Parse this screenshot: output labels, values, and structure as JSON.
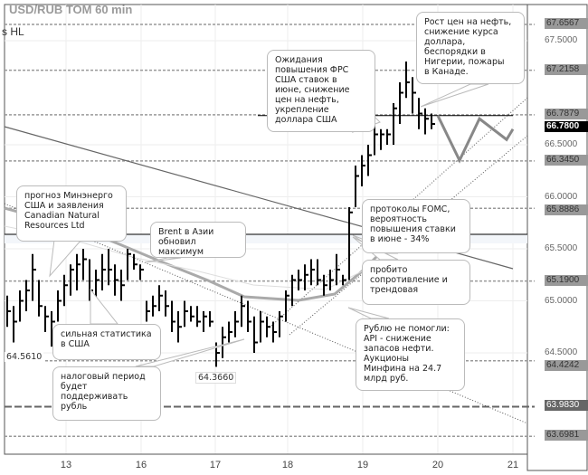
{
  "header": {
    "title": "USD/RUB TOM 60 min",
    "subtitle": "s HL"
  },
  "chart_data": {
    "type": "ohlc-bar",
    "title": "USD/RUB TOM 60 min",
    "x_tick_labels": [
      "13",
      "16",
      "17",
      "18",
      "19",
      "20",
      "21"
    ],
    "y_tick_labels": [
      "67.5000",
      "66.5000",
      "66.0000",
      "65.5000",
      "65.0000",
      "64.5000"
    ],
    "y_ticks": [
      67.5,
      66.5,
      66.0,
      65.5,
      65.0,
      64.5
    ],
    "ylim": [
      63.58,
      67.85
    ],
    "level_lines": [
      {
        "label": "67.6567",
        "value": 67.6567,
        "style": "level"
      },
      {
        "label": "67.2158",
        "value": 67.2158,
        "style": "level"
      },
      {
        "label": "66.7879",
        "value": 66.7879,
        "style": "level"
      },
      {
        "label": "66.7800",
        "value": 66.78,
        "style": "current"
      },
      {
        "label": "66.3450",
        "value": 66.345,
        "style": "level"
      },
      {
        "label": "65.8886",
        "value": 65.8886,
        "style": "level"
      },
      {
        "label": "65.1900",
        "value": 65.19,
        "style": "level"
      },
      {
        "label": "64.4242",
        "value": 64.4242,
        "style": "level"
      },
      {
        "label": "63.9830",
        "value": 63.983,
        "style": "dark"
      },
      {
        "label": "63.6981",
        "value": 63.6981,
        "style": "level"
      }
    ],
    "bars_hlc": [
      [
        65.05,
        64.75,
        64.9
      ],
      [
        64.95,
        64.6,
        64.8
      ],
      [
        65.1,
        64.8,
        65.0
      ],
      [
        65.2,
        64.9,
        65.1
      ],
      [
        65.45,
        65.0,
        65.3
      ],
      [
        65.2,
        64.85,
        64.95
      ],
      [
        64.95,
        64.7,
        64.85
      ],
      [
        64.9,
        64.56,
        64.8
      ],
      [
        65.1,
        64.8,
        65.0
      ],
      [
        65.25,
        64.95,
        65.15
      ],
      [
        65.35,
        65.05,
        65.3
      ],
      [
        65.45,
        65.1,
        65.35
      ],
      [
        65.5,
        65.2,
        65.4
      ],
      [
        65.4,
        65.0,
        65.1
      ],
      [
        65.3,
        64.95,
        65.2
      ],
      [
        65.45,
        65.1,
        65.3
      ],
      [
        65.5,
        65.15,
        65.3
      ],
      [
        65.35,
        65.05,
        65.2
      ],
      [
        65.3,
        65.0,
        65.15
      ],
      [
        65.5,
        65.2,
        65.45
      ],
      [
        65.45,
        65.3,
        65.35
      ],
      [
        65.35,
        65.2,
        65.3
      ],
      [
        65.0,
        64.8,
        64.9
      ],
      [
        65.05,
        64.85,
        64.95
      ],
      [
        65.15,
        64.9,
        65.05
      ],
      [
        65.1,
        64.85,
        64.95
      ],
      [
        65.0,
        64.7,
        64.8
      ],
      [
        64.9,
        64.6,
        64.75
      ],
      [
        65.0,
        64.75,
        64.9
      ],
      [
        64.95,
        64.8,
        64.85
      ],
      [
        64.95,
        64.75,
        64.8
      ],
      [
        64.9,
        64.7,
        64.85
      ],
      [
        64.9,
        64.75,
        64.8
      ],
      [
        64.6,
        64.366,
        64.5
      ],
      [
        64.75,
        64.45,
        64.65
      ],
      [
        64.8,
        64.6,
        64.7
      ],
      [
        64.9,
        64.65,
        64.8
      ],
      [
        65.05,
        64.75,
        64.95
      ],
      [
        65.0,
        64.7,
        64.8
      ],
      [
        64.85,
        64.5,
        64.6
      ],
      [
        64.9,
        64.6,
        64.8
      ],
      [
        64.85,
        64.65,
        64.75
      ],
      [
        64.8,
        64.6,
        64.7
      ],
      [
        64.9,
        64.65,
        64.85
      ],
      [
        65.1,
        64.8,
        65.05
      ],
      [
        65.25,
        64.95,
        65.2
      ],
      [
        65.3,
        65.1,
        65.2
      ],
      [
        65.35,
        65.1,
        65.25
      ],
      [
        65.4,
        65.15,
        65.3
      ],
      [
        65.4,
        65.15,
        65.2
      ],
      [
        65.25,
        65.05,
        65.15
      ],
      [
        65.3,
        65.1,
        65.2
      ],
      [
        65.45,
        65.15,
        65.3
      ],
      [
        65.25,
        65.15,
        65.2
      ],
      [
        65.9,
        65.2,
        65.85
      ],
      [
        66.3,
        65.9,
        66.2
      ],
      [
        66.4,
        66.1,
        66.3
      ],
      [
        66.5,
        66.2,
        66.4
      ],
      [
        66.7,
        66.4,
        66.6
      ],
      [
        66.65,
        66.45,
        66.6
      ],
      [
        66.65,
        66.5,
        66.6
      ],
      [
        66.9,
        66.5,
        66.85
      ],
      [
        67.1,
        66.7,
        67.0
      ],
      [
        67.3,
        66.95,
        67.1
      ],
      [
        67.15,
        66.8,
        67.0
      ],
      [
        66.95,
        66.65,
        66.8
      ],
      [
        66.85,
        66.6,
        66.75
      ],
      [
        66.8,
        66.65,
        66.7
      ]
    ],
    "forecast": [
      66.78,
      66.35,
      66.75,
      66.55,
      66.65
    ],
    "point_labels": [
      {
        "label": "64.5610",
        "value": 64.561
      },
      {
        "label": "64.3660",
        "value": 64.366
      }
    ],
    "colors": {
      "bars": "#000000",
      "forecast": "#888888",
      "levels": "#999999",
      "current": "#000000",
      "ma": "#aaaaaa",
      "trend": "#666666"
    }
  },
  "annotations": {
    "minenergo": "прогноз Минэнерго\nСША и заявления\nCanadian Natural\nResources Ltd",
    "brent": "Brent в Азии\nобновил максимум",
    "fed": "Ожидания\nповышения ФРС\nСША ставок в\nиюне, снижение\nцен на нефть,\nукрепление\nдоллара США",
    "oil": "Рост цен на нефть,\nснижение курса\nдоллара,\nбеспорядки в\nНигерии, пожары\nв Канаде.",
    "fomc": "протоколы FOMC,\nвероятность\nповышения ставки\nв июне - 34%",
    "breakout": "пробито\nсопротивление и\nтрендовая",
    "api": "Рублю не помогли:\nAPI  - снижение\nзапасов нефти.\nАукционы\nМинфина на 24.7\nмлрд руб.",
    "usstats": "сильная статистика\nв США",
    "tax": "налоговый период\nбудет\nподдерживать\nрубль"
  }
}
